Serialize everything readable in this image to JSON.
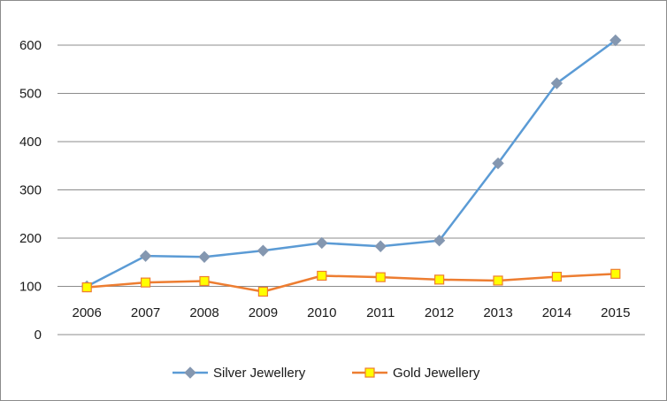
{
  "chart_data": {
    "type": "line",
    "title": "",
    "xlabel": "",
    "ylabel": "",
    "categories": [
      "2006",
      "2007",
      "2008",
      "2009",
      "2010",
      "2011",
      "2012",
      "2013",
      "2014",
      "2015"
    ],
    "ylim": [
      0,
      650
    ],
    "yticks": [
      0,
      100,
      200,
      300,
      400,
      500,
      600
    ],
    "grid": true,
    "legend_position": "bottom",
    "series": [
      {
        "name": "Silver Jewellery",
        "values": [
          100,
          163,
          161,
          174,
          190,
          183,
          195,
          355,
          521,
          610
        ],
        "color": "#5b9bd5",
        "marker": "diamond",
        "marker_color": "#8497b0"
      },
      {
        "name": "Gold Jewellery",
        "values": [
          98,
          108,
          111,
          89,
          122,
          119,
          114,
          112,
          120,
          126
        ],
        "color": "#ed7d31",
        "marker": "square",
        "marker_color": "#ffff00",
        "marker_edge": "#ed7d31"
      }
    ]
  }
}
